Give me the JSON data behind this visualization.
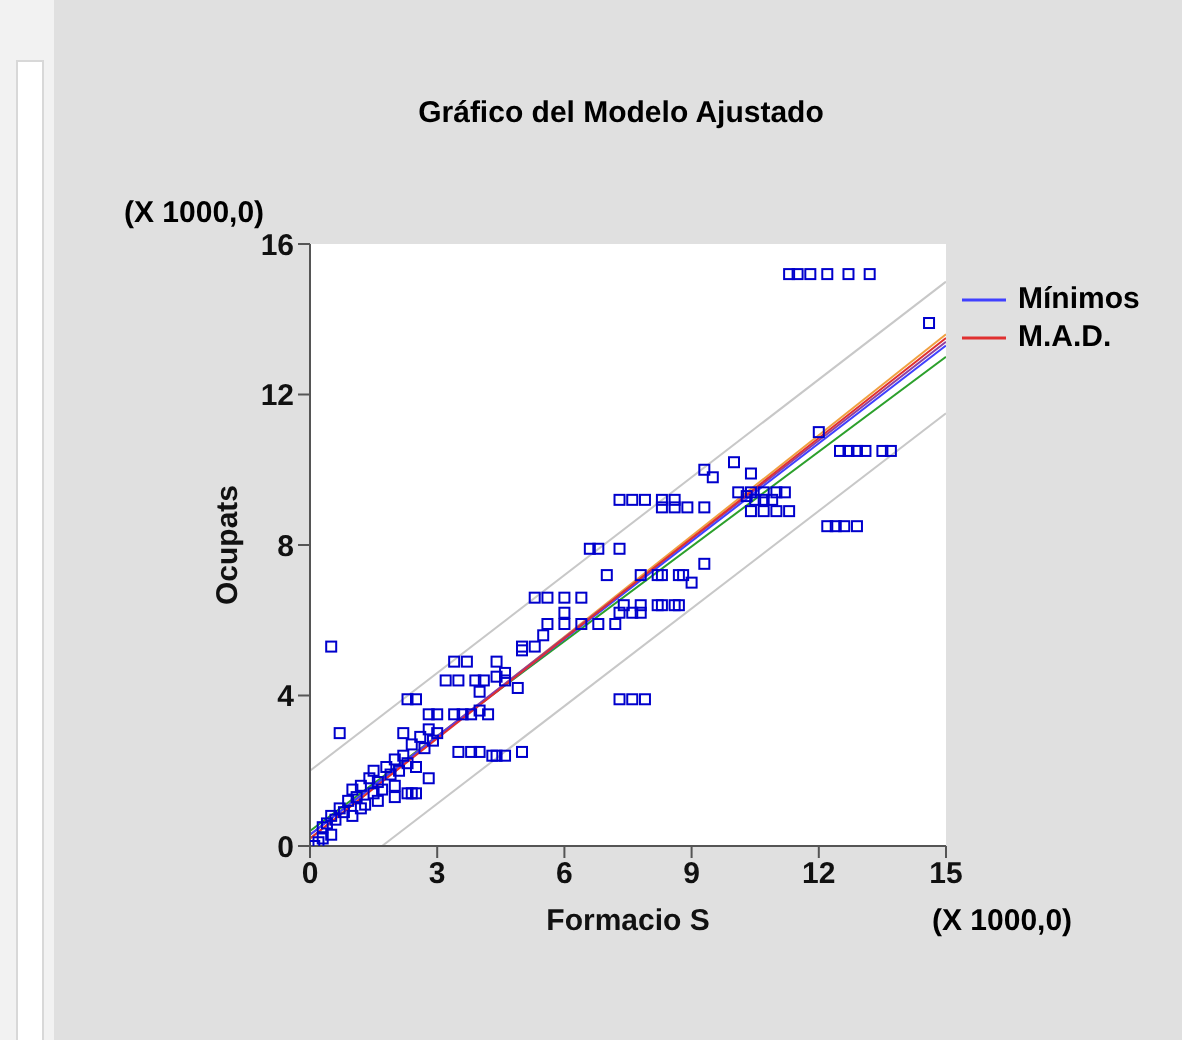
{
  "chart_data": {
    "type": "scatter",
    "title": "Gráfico del Modelo Ajustado",
    "xlabel": "Formacio S",
    "ylabel": "Ocupats",
    "annotations": [
      "(X 1000,0)",
      "(X 1000,0)"
    ],
    "xlim": [
      0,
      15
    ],
    "xticks": [
      0,
      3,
      6,
      9,
      12,
      15
    ],
    "ylim": [
      0,
      16
    ],
    "yticks": [
      0,
      4,
      8,
      12,
      16
    ],
    "grid": false,
    "legend": "top right",
    "series": [
      {
        "marker": "square",
        "color": "#0000cc",
        "x": [
          0.1,
          0.2,
          0.3,
          0.3,
          0.4,
          0.5,
          0.5,
          0.6,
          0.7,
          0.8,
          0.9,
          1.0,
          1.0,
          1.1,
          1.2,
          1.3,
          1.4,
          1.5,
          1.5,
          1.6,
          1.7,
          1.8,
          1.9,
          2.0,
          2.0,
          2.1,
          2.2,
          2.3,
          2.4,
          2.5,
          2.6,
          2.7,
          2.8,
          2.9,
          3.0,
          1.2,
          1.6,
          2.0,
          2.4,
          2.8,
          0.5,
          0.7,
          2.2,
          2.3,
          2.5,
          2.8,
          3.0,
          3.4,
          3.6,
          3.8,
          4.0,
          4.2,
          3.2,
          3.5,
          3.9,
          4.1,
          4.4,
          4.6,
          3.4,
          3.7,
          4.4,
          4.6,
          4.9,
          3.5,
          3.8,
          4.0,
          4.4,
          2.3,
          2.5,
          4.3,
          4.6,
          5.0,
          5.0,
          5.3,
          5.5,
          5.6,
          6.0,
          6.4,
          6.8,
          7.2,
          5.3,
          5.6,
          6.0,
          6.4,
          6.6,
          6.8,
          7.3,
          7.3,
          7.6,
          7.8,
          7.3,
          7.6,
          7.9,
          7.4,
          7.8,
          8.2,
          8.6,
          7.8,
          8.2,
          8.7,
          7.3,
          7.6,
          7.9,
          8.3,
          8.6,
          8.3,
          8.8,
          8.3,
          8.7,
          9.0,
          9.3,
          8.3,
          8.6,
          8.9,
          9.3,
          9.3,
          10.4,
          10.1,
          10.4,
          10.7,
          11.0,
          11.2,
          10.4,
          10.7,
          11.0,
          11.3,
          10.3,
          10.5,
          10.7,
          10.9,
          12.2,
          12.4,
          12.6,
          12.9,
          12.5,
          12.7,
          12.9,
          13.1,
          13.5,
          13.7,
          11.3,
          11.5,
          11.8,
          12.2,
          12.7,
          13.2,
          14.6,
          4.0,
          5.0,
          6.0,
          7.0,
          9.5,
          10.0,
          12.0
        ],
        "values": [
          0.0,
          0.1,
          0.5,
          0.2,
          0.6,
          0.3,
          0.8,
          0.7,
          1.0,
          0.9,
          1.2,
          0.8,
          1.5,
          1.3,
          1.6,
          1.1,
          1.8,
          1.4,
          2.0,
          1.7,
          1.5,
          2.1,
          1.9,
          2.3,
          1.6,
          2.0,
          2.4,
          2.2,
          2.7,
          2.1,
          2.9,
          2.6,
          3.1,
          2.8,
          3.0,
          1.0,
          1.2,
          1.3,
          1.4,
          1.8,
          5.3,
          3.0,
          3.0,
          3.9,
          3.9,
          3.5,
          3.5,
          3.5,
          3.5,
          3.5,
          3.6,
          3.5,
          4.4,
          4.4,
          4.4,
          4.4,
          4.5,
          4.4,
          4.9,
          4.9,
          4.9,
          4.6,
          4.2,
          2.5,
          2.5,
          2.5,
          2.4,
          1.4,
          1.4,
          2.4,
          2.4,
          2.5,
          5.3,
          5.3,
          5.6,
          5.9,
          5.9,
          5.9,
          5.9,
          5.9,
          6.6,
          6.6,
          6.6,
          6.6,
          7.9,
          7.9,
          7.9,
          6.2,
          6.2,
          6.2,
          3.9,
          3.9,
          3.9,
          6.4,
          6.4,
          6.4,
          6.4,
          7.2,
          7.2,
          7.2,
          9.2,
          9.2,
          9.2,
          9.2,
          9.2,
          7.2,
          7.2,
          6.4,
          6.4,
          7.0,
          7.5,
          9.0,
          9.0,
          9.0,
          9.0,
          10.0,
          9.9,
          9.4,
          9.4,
          9.4,
          9.4,
          9.4,
          8.9,
          8.9,
          8.9,
          8.9,
          9.3,
          9.2,
          9.2,
          9.2,
          8.5,
          8.5,
          8.5,
          8.5,
          10.5,
          10.5,
          10.5,
          10.5,
          10.5,
          10.5,
          15.2,
          15.2,
          15.2,
          15.2,
          15.2,
          15.2,
          13.9,
          4.1,
          5.2,
          6.2,
          7.2,
          9.8,
          10.2,
          11.0
        ]
      },
      {
        "type": "line",
        "marker": "none",
        "color": "#c8c8c8",
        "x": [
          0,
          15
        ],
        "values": [
          2.0,
          15.0
        ]
      },
      {
        "type": "line",
        "marker": "none",
        "color": "#c8c8c8",
        "x": [
          1.7,
          15
        ],
        "values": [
          0.0,
          11.5
        ]
      },
      {
        "type": "line",
        "marker": "none",
        "color": "#2ca02c",
        "x": [
          0,
          15
        ],
        "values": [
          0.4,
          13.0
        ]
      },
      {
        "type": "line",
        "marker": "none",
        "color": "#f0a040",
        "x": [
          0,
          15
        ],
        "values": [
          0.2,
          13.6
        ]
      },
      {
        "type": "line",
        "marker": "none",
        "color": "#9040a0",
        "x": [
          0,
          15
        ],
        "values": [
          0.3,
          13.4
        ]
      },
      {
        "type": "line",
        "marker": "none",
        "name": "Mínimos",
        "color": "#4040ff",
        "x": [
          0,
          15
        ],
        "values": [
          0.3,
          13.3
        ]
      },
      {
        "type": "line",
        "marker": "none",
        "name": "M.A.D.",
        "color": "#e03030",
        "x": [
          0,
          15
        ],
        "values": [
          0.2,
          13.5
        ]
      }
    ]
  }
}
